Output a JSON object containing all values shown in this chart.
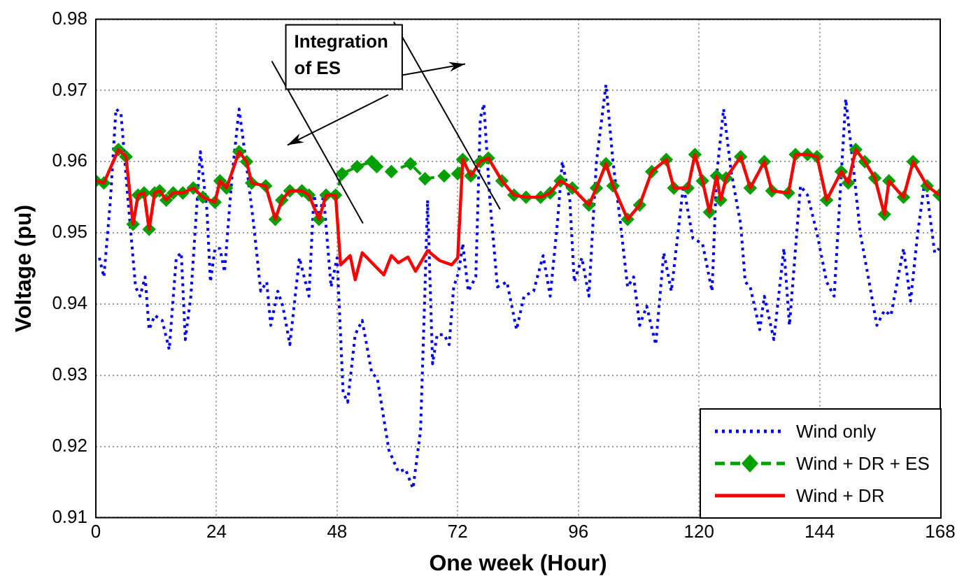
{
  "chart_data": {
    "type": "line",
    "xlabel": "One week (Hour)",
    "ylabel": "Voltage (pu)",
    "xlim": [
      0,
      168
    ],
    "xticks": [
      0,
      24,
      48,
      72,
      96,
      120,
      144,
      168
    ],
    "ylim": [
      0.91,
      0.98
    ],
    "yticks": [
      0.91,
      0.92,
      0.93,
      0.94,
      0.95,
      0.96,
      0.97,
      0.98
    ],
    "grid": true,
    "legend": "bottom right",
    "annotations": [
      "Integration\nof ES"
    ],
    "series": [
      {
        "name": "Wind only",
        "color": "#0000ff",
        "line_style": "dotted",
        "marker": "none",
        "x": [
          0.7,
          1.6,
          2.9,
          4,
          5,
          6.4,
          7.9,
          8.8,
          9.8,
          10.6,
          11.7,
          13.2,
          14.6,
          16,
          17,
          17.8,
          18.9,
          20.8,
          22.1,
          22.8,
          23.7,
          24.7,
          25.6,
          27.1,
          28.5,
          30,
          31.4,
          32.8,
          34,
          34.8,
          36.2,
          37.2,
          38.6,
          40.5,
          42.4,
          43.4,
          44.4,
          45.3,
          46.8,
          48,
          49.2,
          50.1,
          51.6,
          53,
          54.9,
          56,
          58.3,
          60.2,
          61.6,
          63.1,
          64.6,
          65.5,
          66,
          67,
          67.9,
          69.3,
          70.3,
          71.2,
          72.2,
          73,
          74.1,
          75.6,
          76.5,
          77.2,
          78.4,
          79.9,
          81.8,
          83.7,
          85.2,
          87.1,
          89,
          90.4,
          91.9,
          92.8,
          94.3,
          95.2,
          96.7,
          98.1,
          99.6,
          101.5,
          102.9,
          104.4,
          105.8,
          107,
          108.2,
          109.6,
          111.4,
          113,
          114.5,
          116.9,
          118.8,
          120.7,
          122.6,
          123.5,
          124.9,
          126.4,
          128.3,
          129.2,
          130.2,
          132.1,
          133,
          134.9,
          136.9,
          138,
          140.2,
          141.6,
          143.5,
          145.4,
          146.9,
          148.3,
          149.2,
          150.7,
          152.1,
          153.5,
          155.4,
          156.9,
          158.2,
          160.7,
          162.1,
          163.5,
          165,
          166.9,
          167.8
        ],
        "values": [
          0.9465,
          0.9438,
          0.9546,
          0.9674,
          0.9668,
          0.9546,
          0.9424,
          0.9411,
          0.9438,
          0.9364,
          0.9384,
          0.9377,
          0.9336,
          0.9465,
          0.9472,
          0.935,
          0.9411,
          0.9614,
          0.9532,
          0.9431,
          0.9478,
          0.9478,
          0.9445,
          0.958,
          0.9674,
          0.9593,
          0.9512,
          0.9418,
          0.9431,
          0.937,
          0.9418,
          0.9397,
          0.9343,
          0.9465,
          0.9411,
          0.9553,
          0.9519,
          0.9553,
          0.9424,
          0.9465,
          0.9276,
          0.9262,
          0.9357,
          0.9377,
          0.9303,
          0.9296,
          0.9195,
          0.9164,
          0.9168,
          0.9141,
          0.9222,
          0.9424,
          0.9546,
          0.9316,
          0.9357,
          0.9357,
          0.9343,
          0.9424,
          0.9445,
          0.9485,
          0.9418,
          0.9438,
          0.9661,
          0.9681,
          0.9546,
          0.9424,
          0.9431,
          0.9364,
          0.9411,
          0.9418,
          0.9468,
          0.9411,
          0.9519,
          0.96,
          0.9546,
          0.9431,
          0.9465,
          0.9411,
          0.96,
          0.9708,
          0.96,
          0.9512,
          0.9424,
          0.9438,
          0.937,
          0.9397,
          0.9343,
          0.9472,
          0.9418,
          0.9566,
          0.9492,
          0.9485,
          0.9418,
          0.958,
          0.9674,
          0.9586,
          0.9512,
          0.9431,
          0.9424,
          0.9364,
          0.9411,
          0.935,
          0.9478,
          0.937,
          0.9566,
          0.9553,
          0.9499,
          0.9431,
          0.9411,
          0.958,
          0.9688,
          0.9593,
          0.9499,
          0.9445,
          0.937,
          0.9391,
          0.9384,
          0.9478,
          0.9404,
          0.9499,
          0.9576,
          0.9472,
          0.9478
        ]
      },
      {
        "name": "Wind + DR + ES",
        "color": "#00a000",
        "line_style": "dashed",
        "marker": "diamond",
        "x": [
          0,
          1.6,
          4.5,
          6,
          7.4,
          8.4,
          9.6,
          10.6,
          11.7,
          12.7,
          14,
          15.4,
          17.3,
          19.4,
          21.3,
          23.7,
          24.7,
          26,
          28.5,
          30,
          31,
          33.8,
          35.7,
          37,
          38.6,
          41,
          42.4,
          44.4,
          45.8,
          47.7,
          49,
          52,
          54.9,
          55.9,
          58.8,
          62.6,
          65.5,
          69.3,
          72,
          73,
          74.6,
          76.5,
          78.1,
          80.8,
          83.2,
          85.6,
          88.5,
          90.4,
          92.4,
          94.8,
          98.1,
          99.6,
          101.5,
          102.9,
          105.8,
          108.2,
          110.6,
          113.5,
          115,
          117.8,
          119.2,
          120.7,
          122.1,
          123.5,
          124.3,
          125.4,
          128.3,
          130.2,
          133,
          134.5,
          137.8,
          139.2,
          141.6,
          143.5,
          145.4,
          148.3,
          149.7,
          151.2,
          153,
          155,
          156.9,
          157.8,
          160.7,
          162.6,
          165.4,
          167.8
        ],
        "values": [
          0.9573,
          0.957,
          0.9617,
          0.9607,
          0.9512,
          0.9553,
          0.9556,
          0.9505,
          0.9556,
          0.9559,
          0.9546,
          0.9556,
          0.9556,
          0.9563,
          0.955,
          0.9543,
          0.9573,
          0.9563,
          0.9614,
          0.96,
          0.957,
          0.9566,
          0.9519,
          0.9546,
          0.9559,
          0.9559,
          0.9553,
          0.9519,
          0.9553,
          0.9553,
          0.9583,
          0.9593,
          0.96,
          0.9593,
          0.9586,
          0.9597,
          0.9576,
          0.958,
          0.9583,
          0.9603,
          0.958,
          0.96,
          0.9605,
          0.9573,
          0.9553,
          0.955,
          0.955,
          0.9556,
          0.9573,
          0.9563,
          0.9539,
          0.9563,
          0.9597,
          0.9566,
          0.9519,
          0.9539,
          0.9586,
          0.9603,
          0.9563,
          0.9563,
          0.961,
          0.9573,
          0.9529,
          0.958,
          0.9546,
          0.9577,
          0.9607,
          0.9563,
          0.96,
          0.9559,
          0.9556,
          0.961,
          0.961,
          0.9607,
          0.9546,
          0.9586,
          0.957,
          0.9617,
          0.96,
          0.9577,
          0.9526,
          0.9573,
          0.955,
          0.96,
          0.9566,
          0.9553
        ]
      },
      {
        "name": "Wind + DR",
        "color": "#ff0000",
        "line_style": "solid",
        "marker": "none",
        "x": [
          0,
          1.6,
          4.5,
          6,
          7.4,
          8.4,
          9.6,
          10.6,
          11.7,
          12.7,
          14,
          15.4,
          17.3,
          19.4,
          21.3,
          23.7,
          24.7,
          26,
          28.5,
          30,
          31,
          33.8,
          35.7,
          37,
          38.6,
          41,
          42.4,
          44.4,
          45.8,
          47.7,
          48.7,
          50.6,
          51.6,
          53,
          55.9,
          57.3,
          58.8,
          60.2,
          62.1,
          63.6,
          66,
          68.4,
          70.8,
          72,
          73,
          74.6,
          76.5,
          78.1,
          80.8,
          83.2,
          85.6,
          88.5,
          90.4,
          92.4,
          94.8,
          98.1,
          99.6,
          101.5,
          102.9,
          105.8,
          108.2,
          110.6,
          113.5,
          115,
          117.8,
          119.2,
          120.7,
          122.1,
          123.5,
          124.3,
          125.4,
          128.3,
          130.2,
          133,
          134.5,
          137.8,
          139.2,
          141.6,
          143.5,
          145.4,
          148.3,
          149.7,
          151.2,
          153,
          155,
          156.9,
          157.8,
          160.7,
          162.6,
          165.4,
          167.8
        ],
        "values": [
          0.9573,
          0.957,
          0.9617,
          0.9607,
          0.9512,
          0.9553,
          0.9556,
          0.9505,
          0.9556,
          0.9559,
          0.9546,
          0.9556,
          0.9556,
          0.9563,
          0.955,
          0.9543,
          0.9573,
          0.9563,
          0.9614,
          0.96,
          0.957,
          0.9566,
          0.9519,
          0.9546,
          0.9559,
          0.9559,
          0.9553,
          0.9519,
          0.9553,
          0.9553,
          0.9455,
          0.9468,
          0.9434,
          0.9472,
          0.9451,
          0.9441,
          0.9468,
          0.9458,
          0.9466,
          0.9446,
          0.9475,
          0.9461,
          0.9455,
          0.9465,
          0.9603,
          0.958,
          0.96,
          0.9605,
          0.9573,
          0.9553,
          0.955,
          0.955,
          0.9556,
          0.9573,
          0.9563,
          0.9539,
          0.9563,
          0.9597,
          0.9566,
          0.9519,
          0.9539,
          0.9586,
          0.9603,
          0.9563,
          0.9563,
          0.961,
          0.9573,
          0.9529,
          0.958,
          0.9546,
          0.9577,
          0.9607,
          0.9563,
          0.96,
          0.9559,
          0.9556,
          0.961,
          0.961,
          0.9607,
          0.9546,
          0.9586,
          0.957,
          0.9617,
          0.96,
          0.9577,
          0.9526,
          0.9573,
          0.955,
          0.96,
          0.9566,
          0.9553
        ]
      }
    ]
  }
}
